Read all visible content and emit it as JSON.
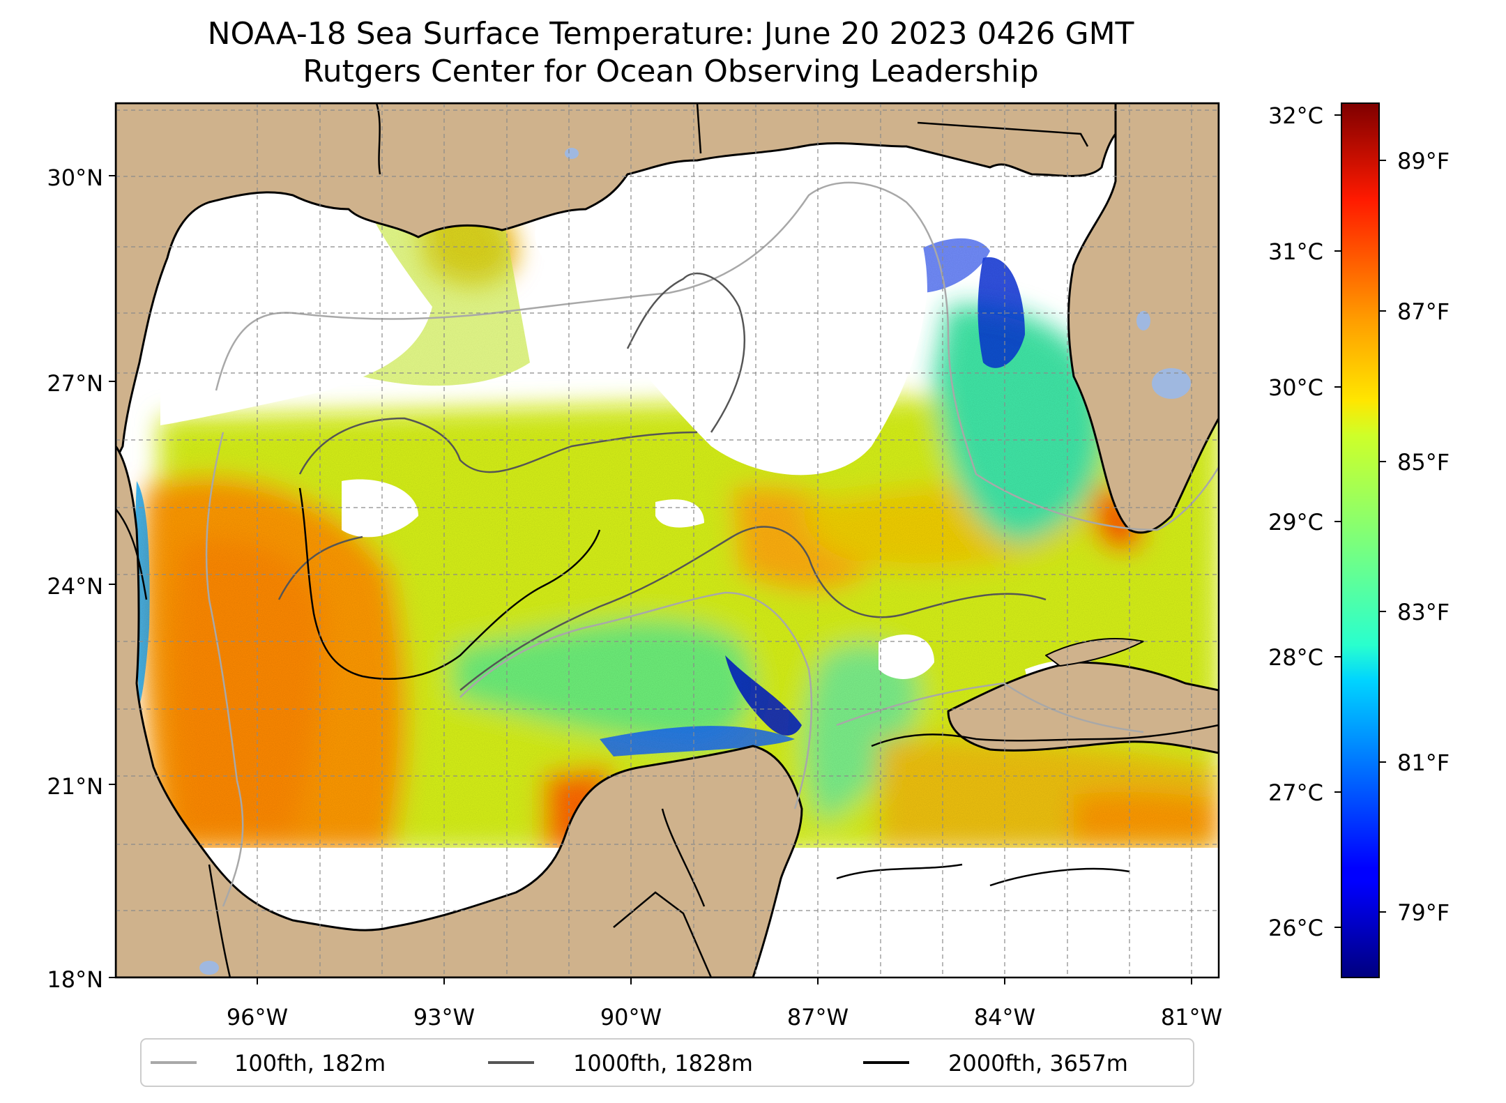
{
  "title": "NOAA-18 Sea Surface Temperature: June 20 2023 0426 GMT",
  "subtitle": "Rutgers Center for Ocean Observing Leadership",
  "map": {
    "lon_range": [
      -98.3,
      -80.6
    ],
    "lat_range": [
      18.0,
      31.0
    ],
    "lat_ticks": [
      {
        "value": 30,
        "label": "30°N"
      },
      {
        "value": 27,
        "label": "27°N"
      },
      {
        "value": 24,
        "label": "24°N"
      },
      {
        "value": 21,
        "label": "21°N"
      },
      {
        "value": 18,
        "label": "18°N"
      }
    ],
    "lon_ticks": [
      {
        "value": -96,
        "label": "96°W"
      },
      {
        "value": -93,
        "label": "93°W"
      },
      {
        "value": -90,
        "label": "90°W"
      },
      {
        "value": -87,
        "label": "87°W"
      },
      {
        "value": -84,
        "label": "84°W"
      },
      {
        "value": -81,
        "label": "81°W"
      }
    ],
    "gridlines": true,
    "land_color": "#cfb28c",
    "lake_color": "#9fb8e0",
    "nodata_color": "#ffffff"
  },
  "colorbar": {
    "colormap": "jet",
    "celsius_ticks": [
      {
        "value": 32,
        "label": "32°C"
      },
      {
        "value": 31,
        "label": "31°C"
      },
      {
        "value": 30,
        "label": "30°C"
      },
      {
        "value": 29,
        "label": "29°C"
      },
      {
        "value": 28,
        "label": "28°C"
      },
      {
        "value": 27,
        "label": "27°C"
      },
      {
        "value": 26,
        "label": "26°C"
      }
    ],
    "fahrenheit_ticks": [
      {
        "value": 89,
        "label": "89°F"
      },
      {
        "value": 87,
        "label": "87°F"
      },
      {
        "value": 85,
        "label": "85°F"
      },
      {
        "value": 83,
        "label": "83°F"
      },
      {
        "value": 81,
        "label": "81°F"
      },
      {
        "value": 79,
        "label": "79°F"
      }
    ],
    "range_f": [
      77.7,
      90.3
    ]
  },
  "legend": {
    "placement": "bottom",
    "entries": [
      {
        "label": "100fth, 182m",
        "color": "#a8a8a8"
      },
      {
        "label": "1000fth, 1828m",
        "color": "#555555"
      },
      {
        "label": "2000fth, 3657m",
        "color": "#000000"
      }
    ]
  }
}
